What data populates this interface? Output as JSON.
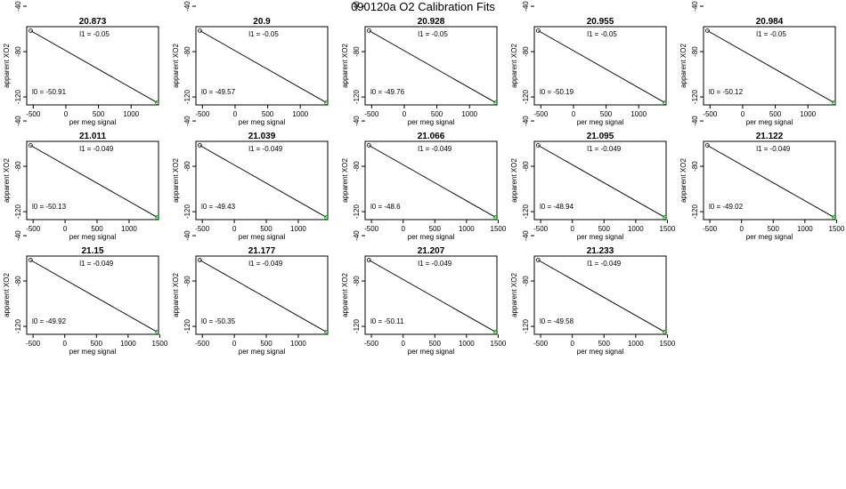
{
  "main_title": "090120a   O2 Calibration Fits",
  "chart_data": [
    {
      "type": "scatter",
      "title": "20.873",
      "xlabel": "per meg signal",
      "ylabel": "apparent XO2",
      "x_ticks": [
        "-500",
        "0",
        "500",
        "1000"
      ],
      "y_ticks": [
        "-40",
        "-80",
        "-120"
      ],
      "xlim": [
        -600,
        1420
      ],
      "ylim": [
        -127,
        -58
      ],
      "points": [
        [
          -540,
          -61.5
        ],
        [
          1400,
          -125
        ]
      ],
      "annotations": {
        "l1": "l1 =  -0.05",
        "l0": "l0 =  -50.91"
      }
    },
    {
      "type": "scatter",
      "title": "20.9",
      "xlabel": "per meg signal",
      "ylabel": "apparent XO2",
      "x_ticks": [
        "-500",
        "0",
        "500",
        "1000"
      ],
      "y_ticks": [
        "-40",
        "-80",
        "-120"
      ],
      "xlim": [
        -600,
        1420
      ],
      "ylim": [
        -127,
        -58
      ],
      "points": [
        [
          -540,
          -61.5
        ],
        [
          1400,
          -125
        ]
      ],
      "annotations": {
        "l1": "l1 =  -0.05",
        "l0": "l0 =  -49.57"
      }
    },
    {
      "type": "scatter",
      "title": "20.928",
      "xlabel": "per meg signal",
      "ylabel": "apparent XO2",
      "x_ticks": [
        "-500",
        "0",
        "500",
        "1000"
      ],
      "y_ticks": [
        "-40",
        "-80",
        "-120"
      ],
      "xlim": [
        -600,
        1420
      ],
      "ylim": [
        -127,
        -58
      ],
      "points": [
        [
          -540,
          -61.5
        ],
        [
          1400,
          -125
        ]
      ],
      "annotations": {
        "l1": "l1 =  -0.05",
        "l0": "l0 =  -49.76"
      }
    },
    {
      "type": "scatter",
      "title": "20.955",
      "xlabel": "per meg signal",
      "ylabel": "apparent XO2",
      "x_ticks": [
        "-500",
        "0",
        "500",
        "1000"
      ],
      "y_ticks": [
        "-40",
        "-80",
        "-120"
      ],
      "xlim": [
        -600,
        1420
      ],
      "ylim": [
        -127,
        -58
      ],
      "points": [
        [
          -540,
          -61.5
        ],
        [
          1400,
          -125
        ]
      ],
      "annotations": {
        "l1": "l1 =  -0.05",
        "l0": "l0 =  -50.19"
      }
    },
    {
      "type": "scatter",
      "title": "20.984",
      "xlabel": "per meg signal",
      "ylabel": "apparent XO2",
      "x_ticks": [
        "-500",
        "0",
        "500",
        "1000"
      ],
      "y_ticks": [
        "-40",
        "-80",
        "-120"
      ],
      "xlim": [
        -600,
        1420
      ],
      "ylim": [
        -127,
        -58
      ],
      "points": [
        [
          -540,
          -61.5
        ],
        [
          1400,
          -125
        ]
      ],
      "annotations": {
        "l1": "l1 =  -0.05",
        "l0": "l0 =  -50.12"
      }
    },
    {
      "type": "scatter",
      "title": "21.011",
      "xlabel": "per meg signal",
      "ylabel": "apparent XO2",
      "x_ticks": [
        "-500",
        "0",
        "500",
        "1000"
      ],
      "y_ticks": [
        "-40",
        "-80",
        "-120"
      ],
      "xlim": [
        -600,
        1460
      ],
      "ylim": [
        -127,
        -58
      ],
      "points": [
        [
          -540,
          -61.5
        ],
        [
          1440,
          -125
        ]
      ],
      "annotations": {
        "l1": "l1 =  -0.049",
        "l0": "l0 =  -50.13"
      }
    },
    {
      "type": "scatter",
      "title": "21.039",
      "xlabel": "per meg signal",
      "ylabel": "apparent XO2",
      "x_ticks": [
        "-500",
        "0",
        "500",
        "1000"
      ],
      "y_ticks": [
        "-40",
        "-80",
        "-120"
      ],
      "xlim": [
        -600,
        1460
      ],
      "ylim": [
        -127,
        -58
      ],
      "points": [
        [
          -540,
          -61.5
        ],
        [
          1440,
          -125
        ]
      ],
      "annotations": {
        "l1": "l1 =  -0.049",
        "l0": "l0 =  -49.43"
      }
    },
    {
      "type": "scatter",
      "title": "21.066",
      "xlabel": "per meg signal",
      "ylabel": "apparent XO2",
      "x_ticks": [
        "-500",
        "0",
        "500",
        "1000",
        "1500"
      ],
      "y_ticks": [
        "-40",
        "-80",
        "-120"
      ],
      "xlim": [
        -600,
        1480
      ],
      "ylim": [
        -127,
        -58
      ],
      "points": [
        [
          -540,
          -61.5
        ],
        [
          1460,
          -125
        ]
      ],
      "annotations": {
        "l1": "l1 =  -0.049",
        "l0": "l0 =  -48.6"
      }
    },
    {
      "type": "scatter",
      "title": "21.095",
      "xlabel": "per meg signal",
      "ylabel": "apparent XO2",
      "x_ticks": [
        "-500",
        "0",
        "500",
        "1000",
        "1500"
      ],
      "y_ticks": [
        "-40",
        "-80",
        "-120"
      ],
      "xlim": [
        -600,
        1480
      ],
      "ylim": [
        -127,
        -58
      ],
      "points": [
        [
          -540,
          -61.5
        ],
        [
          1460,
          -125
        ]
      ],
      "annotations": {
        "l1": "l1 =  -0.049",
        "l0": "l0 =  -48.94"
      }
    },
    {
      "type": "scatter",
      "title": "21.122",
      "xlabel": "per meg signal",
      "ylabel": "apparent XO2",
      "x_ticks": [
        "-500",
        "0",
        "500",
        "1000",
        "1500"
      ],
      "y_ticks": [
        "-40",
        "-80",
        "-120"
      ],
      "xlim": [
        -600,
        1480
      ],
      "ylim": [
        -127,
        -58
      ],
      "points": [
        [
          -540,
          -61.5
        ],
        [
          1460,
          -125
        ]
      ],
      "annotations": {
        "l1": "l1 =  -0.049",
        "l0": "l0 =  -49.02"
      }
    },
    {
      "type": "scatter",
      "title": "21.15",
      "xlabel": "per meg signal",
      "ylabel": "apparent XO2",
      "x_ticks": [
        "-500",
        "0",
        "500",
        "1000",
        "1500"
      ],
      "y_ticks": [
        "-40",
        "-80",
        "-120"
      ],
      "xlim": [
        -600,
        1480
      ],
      "ylim": [
        -127,
        -58
      ],
      "points": [
        [
          -540,
          -61.5
        ],
        [
          1460,
          -125
        ]
      ],
      "annotations": {
        "l1": "l1 =  -0.049",
        "l0": "l0 =  -49.92"
      }
    },
    {
      "type": "scatter",
      "title": "21.177",
      "xlabel": "per meg signal",
      "ylabel": "apparent XO2",
      "x_ticks": [
        "-500",
        "0",
        "500",
        "1000"
      ],
      "y_ticks": [
        "-40",
        "-80",
        "-120"
      ],
      "xlim": [
        -600,
        1460
      ],
      "ylim": [
        -127,
        -58
      ],
      "points": [
        [
          -540,
          -61.5
        ],
        [
          1440,
          -125
        ]
      ],
      "annotations": {
        "l1": "l1 =  -0.049",
        "l0": "l0 =  -50.35"
      }
    },
    {
      "type": "scatter",
      "title": "21.207",
      "xlabel": "per meg signal",
      "ylabel": "apparent XO2",
      "x_ticks": [
        "-500",
        "0",
        "500",
        "1000",
        "1500"
      ],
      "y_ticks": [
        "-40",
        "-80",
        "-120"
      ],
      "xlim": [
        -600,
        1480
      ],
      "ylim": [
        -127,
        -58
      ],
      "points": [
        [
          -540,
          -61.5
        ],
        [
          1460,
          -125
        ]
      ],
      "annotations": {
        "l1": "l1 =  -0.049",
        "l0": "l0 =  -50.11"
      }
    },
    {
      "type": "scatter",
      "title": "21.233",
      "xlabel": "per meg signal",
      "ylabel": "apparent XO2",
      "x_ticks": [
        "-500",
        "0",
        "500",
        "1000",
        "1500"
      ],
      "y_ticks": [
        "-40",
        "-80",
        "-120"
      ],
      "xlim": [
        -600,
        1480
      ],
      "ylim": [
        -127,
        -58
      ],
      "points": [
        [
          -540,
          -61.5
        ],
        [
          1460,
          -125
        ]
      ],
      "annotations": {
        "l1": "l1 =  -0.049",
        "l0": "l0 =  -49.58"
      }
    }
  ],
  "colors": {
    "axis": "#000000",
    "fit_line": "#000000",
    "first_point": "#000000",
    "last_point": "#00aa00"
  }
}
